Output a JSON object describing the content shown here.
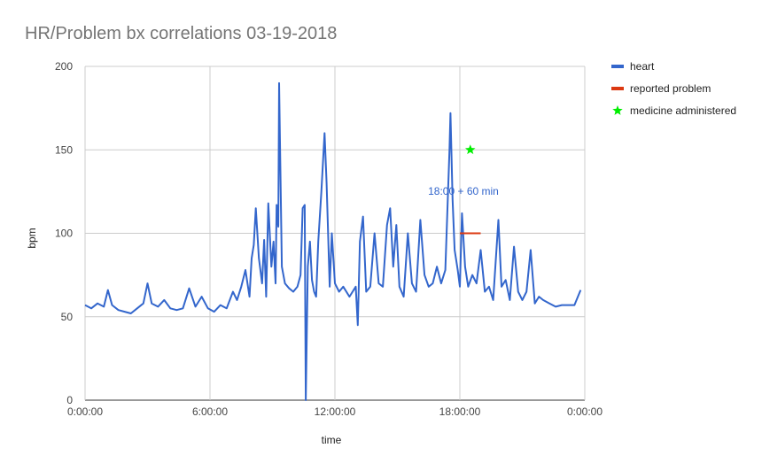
{
  "chart_data": {
    "type": "line",
    "title": "HR/Problem bx correlations 03-19-2018",
    "xlabel": "time",
    "ylabel": "bpm",
    "ylim": [
      0,
      200
    ],
    "xlim_hours": [
      0,
      24
    ],
    "yticks": [
      0,
      50,
      100,
      150,
      200
    ],
    "xticks": [
      {
        "hour": 0,
        "label": "0:00:00"
      },
      {
        "hour": 6,
        "label": "6:00:00"
      },
      {
        "hour": 12,
        "label": "12:00:00"
      },
      {
        "hour": 18,
        "label": "18:00:00"
      },
      {
        "hour": 24,
        "label": "0:00:00"
      }
    ],
    "grid": true,
    "legend_position": "right",
    "series": [
      {
        "name": "heart",
        "color": "#3366cc",
        "points": [
          [
            0.0,
            57
          ],
          [
            0.3,
            55
          ],
          [
            0.6,
            58
          ],
          [
            0.9,
            56
          ],
          [
            1.1,
            66
          ],
          [
            1.3,
            57
          ],
          [
            1.6,
            54
          ],
          [
            1.9,
            53
          ],
          [
            2.2,
            52
          ],
          [
            2.5,
            55
          ],
          [
            2.8,
            58
          ],
          [
            3.0,
            70
          ],
          [
            3.2,
            58
          ],
          [
            3.5,
            56
          ],
          [
            3.8,
            60
          ],
          [
            4.1,
            55
          ],
          [
            4.4,
            54
          ],
          [
            4.7,
            55
          ],
          [
            5.0,
            67
          ],
          [
            5.3,
            56
          ],
          [
            5.6,
            62
          ],
          [
            5.9,
            55
          ],
          [
            6.2,
            53
          ],
          [
            6.5,
            57
          ],
          [
            6.8,
            55
          ],
          [
            7.1,
            65
          ],
          [
            7.3,
            60
          ],
          [
            7.5,
            68
          ],
          [
            7.7,
            78
          ],
          [
            7.9,
            62
          ],
          [
            8.0,
            85
          ],
          [
            8.1,
            93
          ],
          [
            8.2,
            115
          ],
          [
            8.35,
            85
          ],
          [
            8.5,
            70
          ],
          [
            8.6,
            96
          ],
          [
            8.7,
            62
          ],
          [
            8.8,
            118
          ],
          [
            8.95,
            80
          ],
          [
            9.05,
            95
          ],
          [
            9.15,
            70
          ],
          [
            9.2,
            117
          ],
          [
            9.28,
            104
          ],
          [
            9.32,
            190
          ],
          [
            9.38,
            140
          ],
          [
            9.45,
            80
          ],
          [
            9.6,
            70
          ],
          [
            9.8,
            67
          ],
          [
            10.0,
            65
          ],
          [
            10.2,
            68
          ],
          [
            10.35,
            75
          ],
          [
            10.45,
            115
          ],
          [
            10.55,
            117
          ],
          [
            10.6,
            0
          ],
          [
            10.7,
            80
          ],
          [
            10.8,
            95
          ],
          [
            10.9,
            72
          ],
          [
            11.0,
            65
          ],
          [
            11.1,
            62
          ],
          [
            11.2,
            95
          ],
          [
            11.35,
            125
          ],
          [
            11.5,
            160
          ],
          [
            11.6,
            130
          ],
          [
            11.75,
            68
          ],
          [
            11.85,
            100
          ],
          [
            12.0,
            70
          ],
          [
            12.2,
            65
          ],
          [
            12.4,
            68
          ],
          [
            12.7,
            62
          ],
          [
            13.0,
            68
          ],
          [
            13.1,
            45
          ],
          [
            13.2,
            95
          ],
          [
            13.35,
            110
          ],
          [
            13.5,
            65
          ],
          [
            13.7,
            68
          ],
          [
            13.9,
            100
          ],
          [
            14.1,
            70
          ],
          [
            14.3,
            68
          ],
          [
            14.5,
            105
          ],
          [
            14.65,
            115
          ],
          [
            14.8,
            80
          ],
          [
            14.95,
            105
          ],
          [
            15.1,
            68
          ],
          [
            15.3,
            62
          ],
          [
            15.5,
            100
          ],
          [
            15.7,
            70
          ],
          [
            15.9,
            65
          ],
          [
            16.1,
            108
          ],
          [
            16.3,
            75
          ],
          [
            16.5,
            68
          ],
          [
            16.7,
            70
          ],
          [
            16.9,
            80
          ],
          [
            17.1,
            70
          ],
          [
            17.3,
            78
          ],
          [
            17.5,
            150
          ],
          [
            17.55,
            172
          ],
          [
            17.65,
            120
          ],
          [
            17.75,
            90
          ],
          [
            17.9,
            78
          ],
          [
            18.0,
            68
          ],
          [
            18.1,
            112
          ],
          [
            18.25,
            80
          ],
          [
            18.4,
            68
          ],
          [
            18.6,
            75
          ],
          [
            18.8,
            70
          ],
          [
            19.0,
            90
          ],
          [
            19.2,
            65
          ],
          [
            19.4,
            68
          ],
          [
            19.6,
            60
          ],
          [
            19.85,
            108
          ],
          [
            20.0,
            68
          ],
          [
            20.2,
            72
          ],
          [
            20.4,
            60
          ],
          [
            20.6,
            92
          ],
          [
            20.8,
            65
          ],
          [
            21.0,
            60
          ],
          [
            21.2,
            65
          ],
          [
            21.4,
            90
          ],
          [
            21.6,
            58
          ],
          [
            21.8,
            62
          ],
          [
            22.0,
            60
          ],
          [
            22.3,
            58
          ],
          [
            22.6,
            56
          ],
          [
            22.9,
            57
          ],
          [
            23.2,
            57
          ],
          [
            23.5,
            57
          ],
          [
            23.8,
            66
          ]
        ]
      },
      {
        "name": "reported problem",
        "color": "#dc3912",
        "points": [
          [
            18.0,
            100
          ],
          [
            19.0,
            100
          ]
        ]
      },
      {
        "name": "medicine administered",
        "color": "#00ee00",
        "marker": "star",
        "points": [
          [
            18.5,
            150
          ]
        ]
      }
    ],
    "annotations": [
      {
        "text": "18:00 + 60 min",
        "hour": 18.0,
        "value": 120
      }
    ]
  }
}
